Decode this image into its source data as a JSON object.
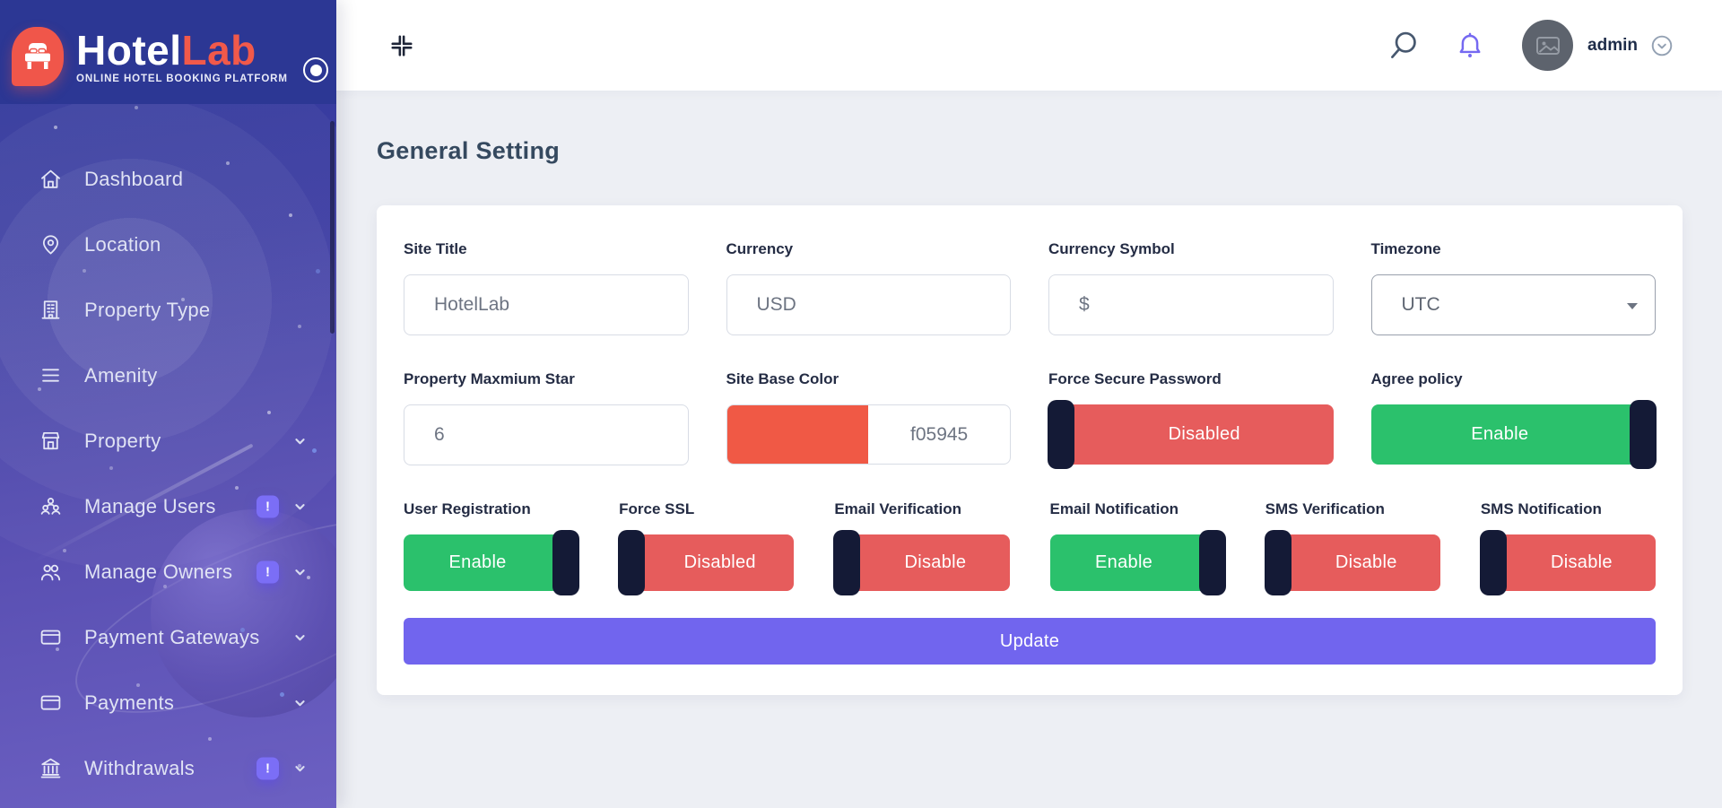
{
  "brand": {
    "name_primary": "Hotel",
    "name_secondary": "Lab",
    "tagline": "ONLINE HOTEL BOOKING PLATFORM",
    "logo_icon": "bed-icon",
    "pin_toggle_icon": "radio-circle-icon"
  },
  "sidebar": {
    "items": [
      {
        "label": "Dashboard",
        "icon": "home-icon",
        "badge": null,
        "expandable": false
      },
      {
        "label": "Location",
        "icon": "map-pin-icon",
        "badge": null,
        "expandable": false
      },
      {
        "label": "Property Type",
        "icon": "building-icon",
        "badge": null,
        "expandable": false
      },
      {
        "label": "Amenity",
        "icon": "list-icon",
        "badge": null,
        "expandable": false
      },
      {
        "label": "Property",
        "icon": "storefront-icon",
        "badge": null,
        "expandable": true
      },
      {
        "label": "Manage Users",
        "icon": "users-group-icon",
        "badge": "!",
        "expandable": true
      },
      {
        "label": "Manage Owners",
        "icon": "owners-icon",
        "badge": "!",
        "expandable": true
      },
      {
        "label": "Payment Gateways",
        "icon": "credit-card-icon",
        "badge": null,
        "expandable": true
      },
      {
        "label": "Payments",
        "icon": "credit-card-icon",
        "badge": null,
        "expandable": true
      },
      {
        "label": "Withdrawals",
        "icon": "bank-icon",
        "badge": "!",
        "expandable": true
      }
    ]
  },
  "header": {
    "collapse_icon": "compress-icon",
    "search_icon": "search-icon",
    "notifications_icon": "bell-icon",
    "avatar_icon": "image-placeholder-icon",
    "user_name": "admin",
    "user_menu_icon": "chevron-down-circle-icon"
  },
  "page": {
    "title": "General Setting"
  },
  "form": {
    "site_title": {
      "label": "Site Title",
      "value": "HotelLab"
    },
    "currency": {
      "label": "Currency",
      "value": "USD"
    },
    "currency_symbol": {
      "label": "Currency Symbol",
      "value": "$"
    },
    "timezone": {
      "label": "Timezone",
      "value": "UTC"
    },
    "property_max_star": {
      "label": "Property Maxmium Star",
      "value": "6"
    },
    "site_base_color": {
      "label": "Site Base Color",
      "value": "f05945",
      "swatch_color": "#f05945"
    },
    "toggles_row2": [
      {
        "label": "Force Secure Password",
        "state": "Disabled",
        "enabled": false
      },
      {
        "label": "Agree policy",
        "state": "Enable",
        "enabled": true
      }
    ],
    "toggles_row3": [
      {
        "label": "User Registration",
        "state": "Enable",
        "enabled": true
      },
      {
        "label": "Force SSL",
        "state": "Disabled",
        "enabled": false
      },
      {
        "label": "Email Verification",
        "state": "Disable",
        "enabled": false
      },
      {
        "label": "Email Notification",
        "state": "Enable",
        "enabled": true
      },
      {
        "label": "SMS Verification",
        "state": "Disable",
        "enabled": false
      },
      {
        "label": "SMS Notification",
        "state": "Disable",
        "enabled": false
      }
    ],
    "submit_label": "Update"
  },
  "colors": {
    "accent": "#7165ee",
    "success": "#2bc16c",
    "danger": "#e65c5c",
    "site_base": "#f05945",
    "toggle_knob": "#141a36",
    "badge": "#7b6ef6",
    "bell": "#7569f1"
  }
}
